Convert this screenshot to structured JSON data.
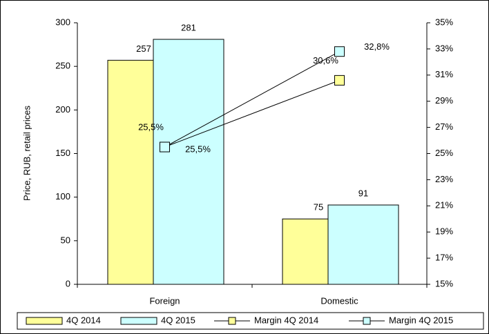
{
  "chart_data": {
    "type": "bar-line",
    "y_label": "Price, RUB, retail prices",
    "categories": [
      "Foreign",
      "Domestic"
    ],
    "series": [
      {
        "name": "4Q 2014",
        "type": "bar",
        "color": "#ffff99",
        "values": [
          257,
          75
        ]
      },
      {
        "name": "4Q 2015",
        "type": "bar",
        "color": "#ccffff",
        "values": [
          281,
          91
        ]
      },
      {
        "name": "Margin 4Q 2014",
        "type": "line",
        "axis": "y2",
        "color": "#ffff99",
        "values": [
          25.5,
          30.6
        ],
        "value_labels": [
          "25,5%",
          "30,6%"
        ]
      },
      {
        "name": "Margin 4Q 2015",
        "type": "line",
        "axis": "y2",
        "color": "#ccffff",
        "values": [
          25.5,
          32.8
        ],
        "value_labels": [
          "25,5%",
          "32,8%"
        ]
      }
    ],
    "ylim": [
      0,
      300
    ],
    "yticks": [
      0,
      50,
      100,
      150,
      200,
      250,
      300
    ],
    "y2lim": [
      15,
      35
    ],
    "y2ticks": [
      {
        "value": 15,
        "label": "15%"
      },
      {
        "value": 17,
        "label": "17%"
      },
      {
        "value": 19,
        "label": "19%"
      },
      {
        "value": 21,
        "label": "21%"
      },
      {
        "value": 23,
        "label": "23%"
      },
      {
        "value": 25,
        "label": "25%"
      },
      {
        "value": 27,
        "label": "27%"
      },
      {
        "value": 29,
        "label": "29%"
      },
      {
        "value": 31,
        "label": "31%"
      },
      {
        "value": 33,
        "label": "33%"
      },
      {
        "value": 35,
        "label": "35%"
      }
    ],
    "legend": "bottom"
  }
}
